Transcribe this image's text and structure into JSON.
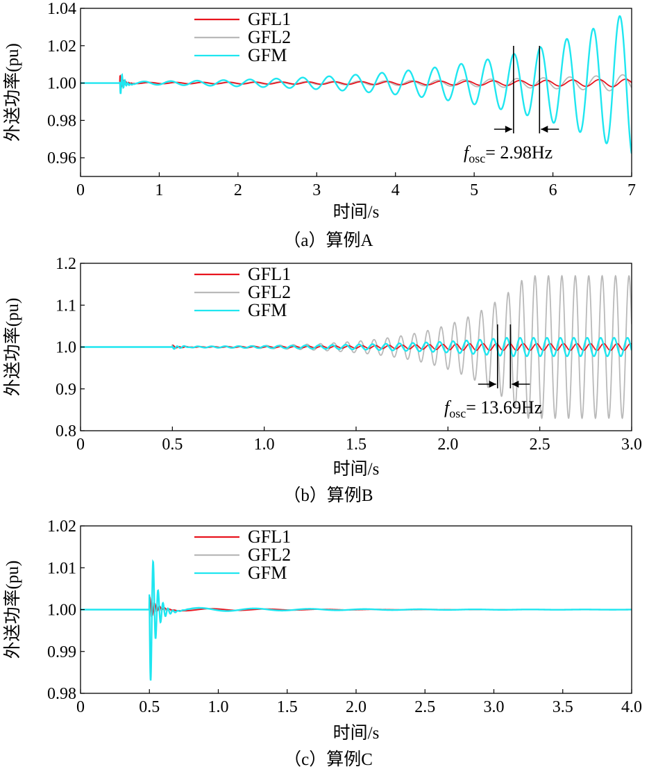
{
  "chart_data": [
    {
      "type": "line",
      "caption": "（a）算例A",
      "xlabel": "时间/s",
      "ylabel": "外送功率(pu)",
      "xlim": [
        0,
        7
      ],
      "ylim": [
        0.95,
        1.04
      ],
      "xticks": [
        0,
        1,
        2,
        3,
        4,
        5,
        6,
        7
      ],
      "xtick_labels": [
        "0",
        "1",
        "2",
        "3",
        "4",
        "5",
        "6",
        "7"
      ],
      "yticks": [
        0.96,
        0.98,
        1.0,
        1.02,
        1.04
      ],
      "ytick_labels": [
        "0.96",
        "0.98",
        "1.00",
        "1.02",
        "1.04"
      ],
      "legend_position": "top-left",
      "series": [
        {
          "name": "GFL1",
          "color": "#e8141e",
          "values_description": "",
          "events": {
            "t0": 0.5,
            "kick": 0.004,
            "freq": 2.98,
            "amp0": 0.0003,
            "growth": 0.3,
            "cap": 0.003
          }
        },
        {
          "name": "GFL2",
          "color": "#b9b9b9",
          "events": {
            "t0": 0.5,
            "kick": 0.004,
            "freq": 2.98,
            "amp0": 0.00025,
            "growth": 0.45,
            "cap": 0.0045
          }
        },
        {
          "name": "GFM",
          "color": "#1fe6f0",
          "events": {
            "t0": 0.5,
            "kick": 0.008,
            "freq": 2.98,
            "amp0": 0.0007,
            "growth": 0.62,
            "cap": 0.04
          }
        }
      ],
      "annotation": {
        "symbol": "f",
        "subscript": "osc",
        "text": "= 2.98Hz",
        "marker_x": [
          5.5,
          5.83
        ]
      }
    },
    {
      "type": "line",
      "caption": "（b）算例B",
      "xlabel": "时间/s",
      "ylabel": "外送功率(pu)",
      "xlim": [
        0,
        3
      ],
      "ylim": [
        0.8,
        1.2
      ],
      "xticks": [
        0,
        0.5,
        1.0,
        1.5,
        2.0,
        2.5,
        3.0
      ],
      "xtick_labels": [
        "0",
        "0.5",
        "1.0",
        "1.5",
        "2.0",
        "2.5",
        "3.0"
      ],
      "yticks": [
        0.8,
        0.9,
        1.0,
        1.1,
        1.2
      ],
      "ytick_labels": [
        "0.8",
        "0.9",
        "1.0",
        "1.1",
        "1.2"
      ],
      "legend_position": "top-left",
      "series": [
        {
          "name": "GFL1",
          "color": "#e8141e",
          "events": {
            "t0": 0.5,
            "kick": 0.004,
            "freq": 13.69,
            "amp0": 0.0006,
            "growth": 1.6,
            "cap": 0.008
          }
        },
        {
          "name": "GFL2",
          "color": "#b9b9b9",
          "events": {
            "t0": 0.5,
            "kick": 0.004,
            "freq": 13.69,
            "amp0": 0.0009,
            "growth": 2.72,
            "cap": 0.17
          }
        },
        {
          "name": "GFM",
          "color": "#1fe6f0",
          "events": {
            "t0": 0.5,
            "kick": 0.006,
            "freq": 13.69,
            "amp0": 0.0012,
            "growth": 1.6,
            "cap": 0.022
          }
        }
      ],
      "annotation": {
        "symbol": "f",
        "subscript": "osc",
        "text": "= 13.69Hz",
        "marker_x": [
          2.27,
          2.34
        ]
      }
    },
    {
      "type": "line",
      "caption": "（c）算例C",
      "xlabel": "时间/s",
      "ylabel": "外送功率(pu)",
      "xlim": [
        0,
        4
      ],
      "ylim": [
        0.98,
        1.02
      ],
      "xticks": [
        0,
        0.5,
        1.0,
        1.5,
        2.0,
        2.5,
        3.0,
        3.5,
        4.0
      ],
      "xtick_labels": [
        "0",
        "0.5",
        "1.0",
        "1.5",
        "2.0",
        "2.5",
        "3.0",
        "3.5",
        "4.0"
      ],
      "yticks": [
        0.98,
        0.99,
        1.0,
        1.01,
        1.02
      ],
      "ytick_labels": [
        "0.98",
        "0.99",
        "1.00",
        "1.01",
        "1.02"
      ],
      "legend_position": "top-left",
      "series": [
        {
          "name": "GFL1",
          "color": "#e8141e",
          "events": {
            "t0": 0.5,
            "kick": 0.003,
            "freq": 2.5,
            "amp0": 0.0004,
            "growth": -1.2,
            "cap": 0.002
          }
        },
        {
          "name": "GFL2",
          "color": "#b9b9b9",
          "events": {
            "t0": 0.5,
            "kick": 0.003,
            "freq": 2.5,
            "amp0": 0.0004,
            "growth": -1.2,
            "cap": 0.002
          }
        },
        {
          "name": "GFM",
          "color": "#1fe6f0",
          "events": {
            "t0": 0.5,
            "kick": 0.022,
            "freq": 2.5,
            "amp0": 0.0006,
            "growth": -1.0,
            "cap": 0.002
          }
        }
      ]
    }
  ]
}
